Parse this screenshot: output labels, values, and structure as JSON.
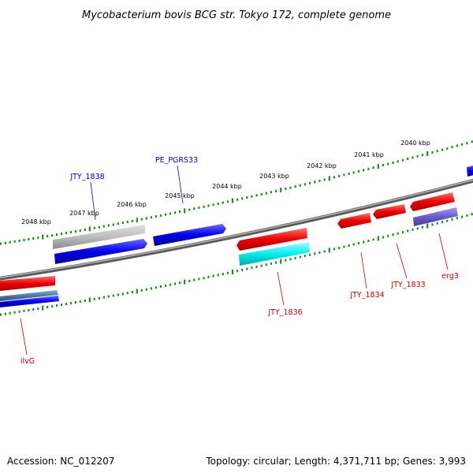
{
  "title": "Mycobacterium bovis BCG str. Tokyo 172, complete genome",
  "ticks": [
    "2040 kbp",
    "2041 kbp",
    "2042 kbp",
    "2043 kbp",
    "2044 kbp",
    "2045 kbp",
    "2046 kbp",
    "2047 kbp",
    "2048 kbp"
  ],
  "labels": {
    "jty1838": "JTY_1838",
    "pe_pgrs33": "PE_PGRS33",
    "jty1836": "JTY_1836",
    "jty1834": "JTY_1834",
    "jty1833": "JTY_1833",
    "erg3": "erg3",
    "ilvg": "ilvG"
  },
  "colors": {
    "forward_label": "#0000cc",
    "reverse_label": "#cc0000",
    "blue": "#0000ee",
    "red": "#ee0000",
    "grey": "#bbbbbb",
    "cyan": "#00eeee",
    "purple": "#6a5acd",
    "tick": "#228b22"
  },
  "footer": {
    "accession": "Accession: NC_012207",
    "summary": "Topology: circular; Length: 4,371,711 bp; Genes: 3,993"
  }
}
